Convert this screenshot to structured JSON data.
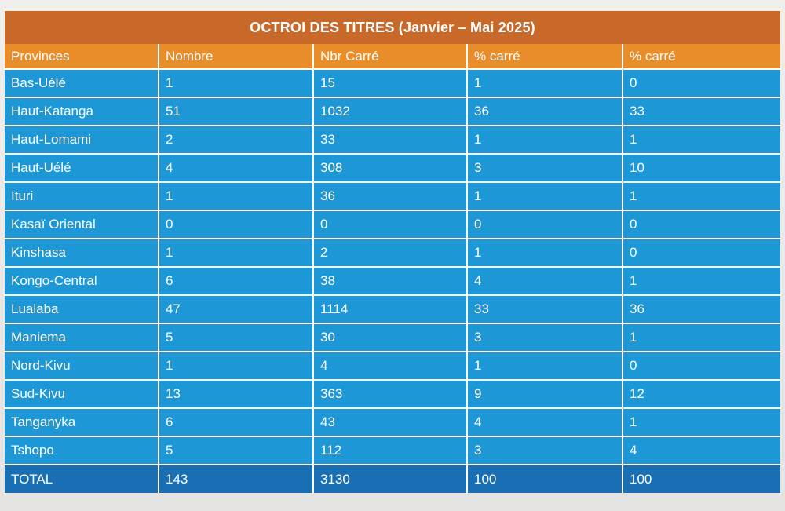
{
  "title": "OCTROI DES TITRES (Janvier – Mai 2025)",
  "columns": [
    "Provinces",
    "Nombre",
    "Nbr Carré",
    "% carré",
    "% carré"
  ],
  "rows": [
    [
      "Bas-Uélé",
      "1",
      "15",
      "1",
      "0"
    ],
    [
      "Haut-Katanga",
      "51",
      "1032",
      "36",
      "33"
    ],
    [
      "Haut-Lomami",
      "2",
      "33",
      "1",
      "1"
    ],
    [
      "Haut-Uélé",
      "4",
      "308",
      "3",
      "10"
    ],
    [
      "Ituri",
      "1",
      "36",
      "1",
      "1"
    ],
    [
      "Kasaï Oriental",
      "0",
      "0",
      "0",
      "0"
    ],
    [
      "Kinshasa",
      "1",
      "2",
      "1",
      "0"
    ],
    [
      "Kongo-Central",
      "6",
      "38",
      "4",
      "1"
    ],
    [
      "Lualaba",
      "47",
      "1114",
      "33",
      "36"
    ],
    [
      "Maniema",
      "5",
      "30",
      "3",
      "1"
    ],
    [
      "Nord-Kivu",
      "1",
      "4",
      "1",
      "0"
    ],
    [
      "Sud-Kivu",
      "13",
      "363",
      "9",
      "12"
    ],
    [
      "Tanganyka",
      "6",
      "43",
      "4",
      "1"
    ],
    [
      "Tshopo",
      "5",
      "112",
      "3",
      "4"
    ]
  ],
  "total": [
    "TOTAL",
    "143",
    "3130",
    "100",
    "100"
  ],
  "colors": {
    "title_bg": "#c8692a",
    "header_bg": "#e98d2b",
    "row_bg": "#1d97d6",
    "total_bg": "#1a6fb4",
    "text": "#ffffff"
  }
}
